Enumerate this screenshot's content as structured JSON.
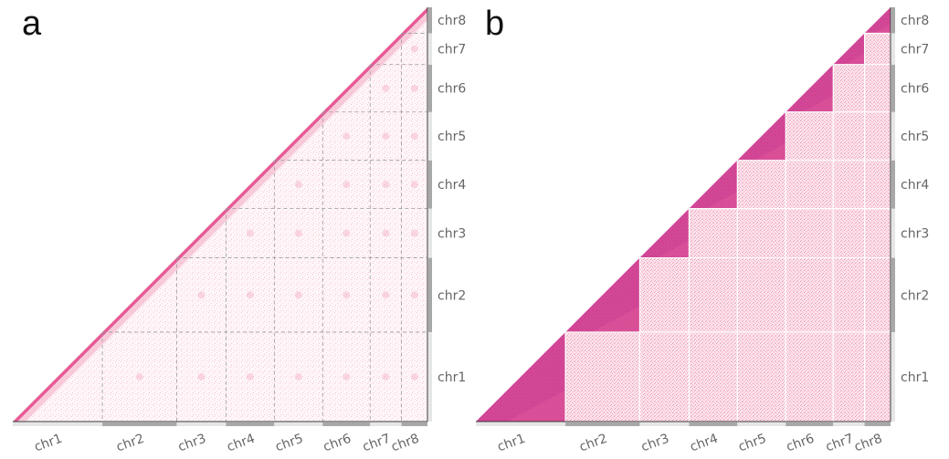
{
  "panels": [
    {
      "letter": "a",
      "style": "diffuse",
      "x_labels": [
        "chr1",
        "chr2",
        "chr3",
        "chr4",
        "chr5",
        "chr6",
        "chr7",
        "chr8"
      ],
      "y_labels": [
        "chr8",
        "chr7",
        "chr6",
        "chr5",
        "chr4",
        "chr3",
        "chr2",
        "chr1"
      ]
    },
    {
      "letter": "b",
      "style": "block",
      "x_labels": [
        "chr1",
        "chr2",
        "chr3",
        "chr4",
        "chr5",
        "chr6",
        "chr7",
        "chr8"
      ],
      "y_labels": [
        "chr8",
        "chr7",
        "chr6",
        "chr5",
        "chr4",
        "chr3",
        "chr2",
        "chr1"
      ]
    }
  ],
  "chromosome_relative_sizes": [
    1.0,
    0.83,
    0.55,
    0.54,
    0.54,
    0.53,
    0.35,
    0.29
  ],
  "colors": {
    "heat_light": "#fbe3ea",
    "heat_mid": "#f4a6bf",
    "heat_dark": "#c71e7f",
    "grid_dash": "#9a9a9a",
    "bar_dark": "#a8a8a8",
    "bar_light": "#e6e6e6",
    "axis": "#333333"
  }
}
